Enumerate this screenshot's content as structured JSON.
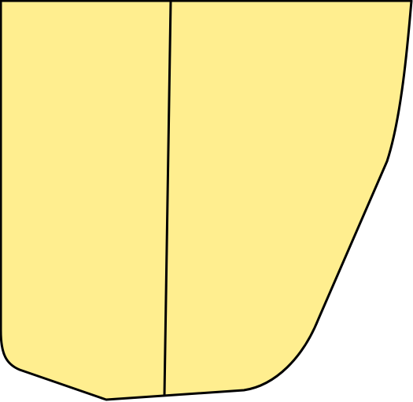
{
  "shape": {
    "fill_color": "#FFEE8F",
    "stroke_color": "#000000",
    "regions": [
      "left-panel",
      "right-panel"
    ]
  }
}
